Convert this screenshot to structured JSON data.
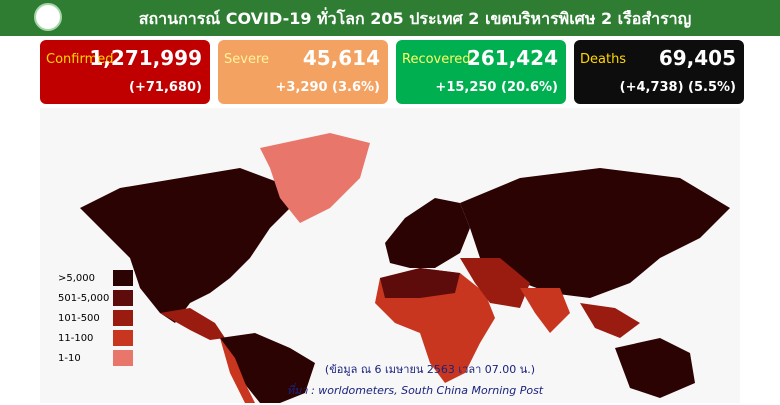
{
  "header": {
    "title": "สถานการณ์ COVID-19 ทั่วโลก 205 ประเทศ 2 เขตบริหารพิเศษ 2 เรือสำราญ"
  },
  "cards": [
    {
      "label": "Confirmed",
      "value": "1,271,999",
      "change": "(+71,680)",
      "color": "#c00000"
    },
    {
      "label": "Severe",
      "value": "45,614",
      "change": "+3,290 (3.6%)",
      "color": "#f4a261"
    },
    {
      "label": "Recovered",
      "value": "261,424",
      "change": "+15,250 (20.6%)",
      "color": "#00b050"
    },
    {
      "label": "Deaths",
      "value": "69,405",
      "change": "(+4,738) (5.5%)",
      "color": "#0d0d0d"
    }
  ],
  "legend": [
    {
      "label": ">5,000",
      "color": "#2b0303"
    },
    {
      "label": "501-5,000",
      "color": "#5e0b0b"
    },
    {
      "label": "101-500",
      "color": "#9a1c10"
    },
    {
      "label": "11-100",
      "color": "#c9361f"
    },
    {
      "label": "1-10",
      "color": "#e8766a"
    }
  ],
  "footer": {
    "date": "(ข้อมูล ณ 6 เมษายน 2563 เวลา 07.00 น.)",
    "source": "ที่มา : worldometers, South China Morning Post"
  }
}
